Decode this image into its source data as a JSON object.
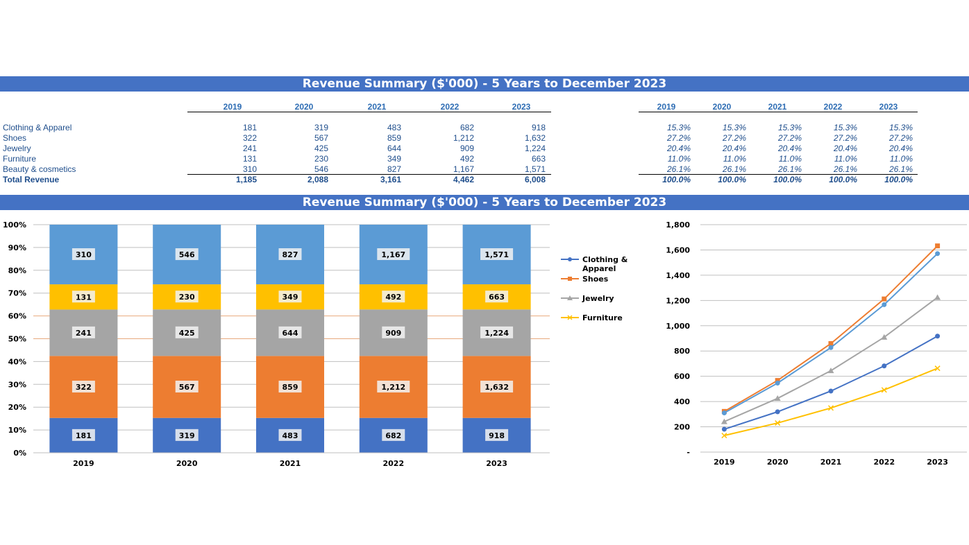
{
  "title": "Revenue Summary ($'000) - 5 Years to December 2023",
  "chart_title": "Revenue Summary ($'000) - 5 Years to December 2023",
  "years": [
    "2019",
    "2020",
    "2021",
    "2022",
    "2023"
  ],
  "table": {
    "rows": [
      {
        "label": "Clothing & Apparel",
        "values": [
          "181",
          "319",
          "483",
          "682",
          "918"
        ],
        "pcts": [
          "15.3%",
          "15.3%",
          "15.3%",
          "15.3%",
          "15.3%"
        ]
      },
      {
        "label": "Shoes",
        "values": [
          "322",
          "567",
          "859",
          "1,212",
          "1,632"
        ],
        "pcts": [
          "27.2%",
          "27.2%",
          "27.2%",
          "27.2%",
          "27.2%"
        ]
      },
      {
        "label": "Jewelry",
        "values": [
          "241",
          "425",
          "644",
          "909",
          "1,224"
        ],
        "pcts": [
          "20.4%",
          "20.4%",
          "20.4%",
          "20.4%",
          "20.4%"
        ]
      },
      {
        "label": "Furniture",
        "values": [
          "131",
          "230",
          "349",
          "492",
          "663"
        ],
        "pcts": [
          "11.0%",
          "11.0%",
          "11.0%",
          "11.0%",
          "11.0%"
        ]
      },
      {
        "label": "Beauty & cosmetics",
        "values": [
          "310",
          "546",
          "827",
          "1,167",
          "1,571"
        ],
        "pcts": [
          "26.1%",
          "26.1%",
          "26.1%",
          "26.1%",
          "26.1%"
        ]
      }
    ],
    "total": {
      "label": "Total Revenue",
      "values": [
        "1,185",
        "2,088",
        "3,161",
        "4,462",
        "6,008"
      ],
      "pcts": [
        "100.0%",
        "100.0%",
        "100.0%",
        "100.0%",
        "100.0%"
      ]
    }
  },
  "chart_data": [
    {
      "type": "bar",
      "stacked": "percent",
      "categories": [
        "2019",
        "2020",
        "2021",
        "2022",
        "2023"
      ],
      "series": [
        {
          "name": "Clothing & Apparel",
          "values": [
            181,
            319,
            483,
            682,
            918
          ],
          "color": "#4472C4"
        },
        {
          "name": "Shoes",
          "values": [
            322,
            567,
            859,
            1212,
            1632
          ],
          "color": "#ED7D31"
        },
        {
          "name": "Jewelry",
          "values": [
            241,
            425,
            644,
            909,
            1224
          ],
          "color": "#A5A5A5"
        },
        {
          "name": "Furniture",
          "values": [
            131,
            230,
            349,
            492,
            663
          ],
          "color": "#FFC000"
        },
        {
          "name": "Beauty & cosmetics",
          "values": [
            310,
            546,
            827,
            1167,
            1571
          ],
          "color": "#5B9BD5"
        }
      ],
      "y_ticks": [
        "0%",
        "10%",
        "20%",
        "30%",
        "40%",
        "50%",
        "60%",
        "70%",
        "80%",
        "90%",
        "100%"
      ],
      "ylim": [
        0,
        100
      ],
      "grid": true
    },
    {
      "type": "line",
      "x": [
        "2019",
        "2020",
        "2021",
        "2022",
        "2023"
      ],
      "series": [
        {
          "name": "Clothing & Apparel",
          "values": [
            181,
            319,
            483,
            682,
            918
          ],
          "color": "#4472C4",
          "marker": "circle"
        },
        {
          "name": "Shoes",
          "values": [
            322,
            567,
            859,
            1212,
            1632
          ],
          "color": "#ED7D31",
          "marker": "square"
        },
        {
          "name": "Jewelry",
          "values": [
            241,
            425,
            644,
            909,
            1224
          ],
          "color": "#A5A5A5",
          "marker": "triangle"
        },
        {
          "name": "Furniture",
          "values": [
            131,
            230,
            349,
            492,
            663
          ],
          "color": "#FFC000",
          "marker": "x"
        },
        {
          "name": "Beauty & cosmetics",
          "values": [
            310,
            546,
            827,
            1167,
            1571
          ],
          "color": "#5B9BD5",
          "marker": "circle"
        }
      ],
      "y_ticks": [
        "-",
        "200",
        "400",
        "600",
        "800",
        "1,000",
        "1,200",
        "1,400",
        "1,600",
        "1,800"
      ],
      "ylim": [
        0,
        1800
      ],
      "grid": true
    }
  ],
  "legend": {
    "items": [
      {
        "label": "Clothing & Apparel",
        "color": "#4472C4",
        "marker": "circle"
      },
      {
        "label": "Shoes",
        "color": "#ED7D31",
        "marker": "square"
      },
      {
        "label": "Jewelry",
        "color": "#A5A5A5",
        "marker": "triangle"
      },
      {
        "label": "Furniture",
        "color": "#FFC000",
        "marker": "x"
      }
    ]
  }
}
